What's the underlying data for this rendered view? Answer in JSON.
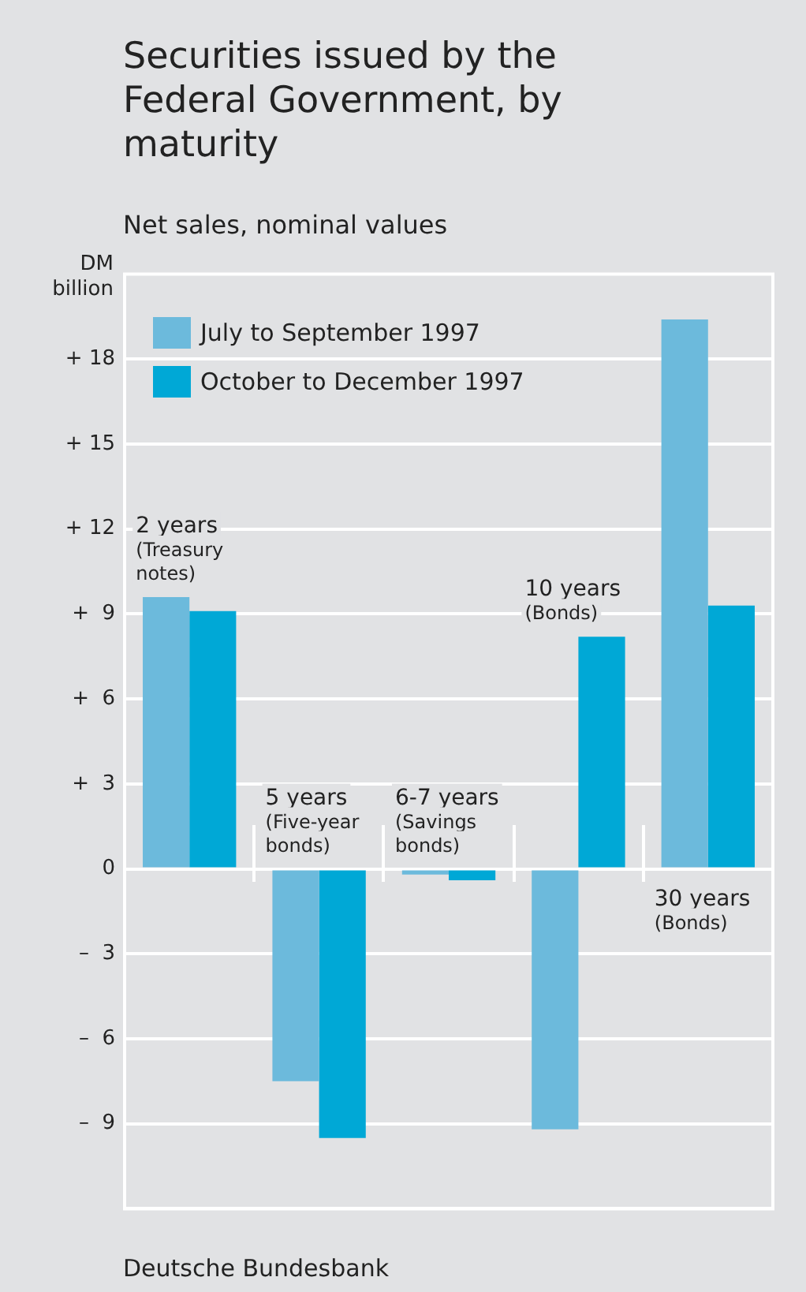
{
  "chart_data": {
    "type": "bar",
    "title": "Securities issued by the Federal Government, by maturity",
    "subtitle": "Net sales, nominal values",
    "ylabel": "DM billion",
    "categories": [
      "2 years (Treasury notes)",
      "5 years (Five-year bonds)",
      "6-7 years (Savings bonds)",
      "10 years (Bonds)",
      "30 years (Bonds)"
    ],
    "series": [
      {
        "name": "July to September 1997",
        "color": "#6cbadc",
        "values": [
          9.6,
          -7.5,
          -0.2,
          -9.2,
          19.4
        ]
      },
      {
        "name": "October to December 1997",
        "color": "#00a8d6",
        "values": [
          9.1,
          -9.5,
          -0.4,
          8.2,
          9.3
        ]
      }
    ],
    "ylim": [
      -12,
      21
    ],
    "yticks": [
      {
        "value": -9,
        "label": "–  9"
      },
      {
        "value": -6,
        "label": "–  6"
      },
      {
        "value": -3,
        "label": "–  3"
      },
      0,
      {
        "value": 3,
        "label": "+  3"
      },
      {
        "value": 6,
        "label": "+  6"
      },
      {
        "value": 9,
        "label": "+  9"
      },
      {
        "value": 12,
        "label": "+ 12"
      },
      {
        "value": 15,
        "label": "+ 15"
      },
      {
        "value": 18,
        "label": "+ 18"
      }
    ],
    "grid": "y",
    "legend": "top left",
    "tick_labels": "y",
    "annotations": [
      "Deutsche Bundesbank"
    ]
  }
}
